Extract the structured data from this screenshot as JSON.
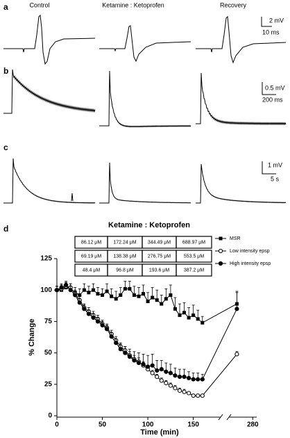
{
  "panels": {
    "a": {
      "label": "a",
      "columns": [
        "Control",
        "Ketamine : Ketoprofen",
        "Recovery"
      ],
      "scale_v": "2 mV",
      "scale_t": "10 ms"
    },
    "b": {
      "label": "b",
      "scale_v": "0.5 mV",
      "scale_t": "200 ms"
    },
    "c": {
      "label": "c",
      "scale_v": "1 mV",
      "scale_t": "5 s"
    },
    "d": {
      "label": "d"
    }
  },
  "chart_data": {
    "type": "line",
    "title": "Ketamine : Ketoprofen",
    "table": [
      [
        "86.12  μM",
        "172.24  μM",
        "344.49  μM",
        "688.97  μM"
      ],
      [
        "69.19  μM",
        "138.38  μM",
        "276.75  μM",
        "553.5  μM"
      ],
      [
        "48.4  μM",
        "96.8  μM",
        "193.6  μM",
        "387.2  μM"
      ]
    ],
    "xlabel": "Time (min)",
    "ylabel": "% Change",
    "x": [
      0,
      5,
      10,
      15,
      20,
      25,
      30,
      35,
      40,
      45,
      50,
      55,
      60,
      65,
      70,
      75,
      80,
      85,
      90,
      95,
      100,
      105,
      110,
      115,
      120,
      125,
      130,
      135,
      140,
      145,
      150,
      155,
      160,
      260
    ],
    "xlim": [
      0,
      180
    ],
    "xticks": [
      0,
      50,
      100,
      150
    ],
    "xlim2": [
      250,
      285
    ],
    "xticks2": [
      280
    ],
    "ylim": [
      0,
      125
    ],
    "yticks": [
      0,
      25,
      50,
      75,
      100,
      125
    ],
    "series": [
      {
        "name": "MSR",
        "color": "#000000",
        "marker": "square",
        "values": [
          100,
          100,
          102,
          101,
          98,
          96,
          100,
          98,
          100,
          97,
          96,
          99,
          95,
          93,
          96,
          101,
          101,
          96,
          95,
          97,
          91,
          94,
          92,
          89,
          93,
          96,
          85,
          80,
          82,
          78,
          80,
          77,
          74,
          89
        ],
        "errors": [
          3,
          4,
          4,
          4,
          4,
          5,
          5,
          5,
          5,
          5,
          5,
          6,
          6,
          6,
          6,
          6,
          6,
          7,
          7,
          7,
          7,
          8,
          8,
          7,
          8,
          8,
          9,
          9,
          8,
          8,
          8,
          7,
          5,
          9
        ]
      },
      {
        "name": "Low intensity epsp",
        "color": "#000000",
        "marker": "open-circle",
        "values": [
          100,
          101,
          103,
          102,
          97,
          92,
          86,
          83,
          80,
          77,
          73,
          70,
          65,
          60,
          55,
          52,
          48,
          45,
          43,
          40,
          37,
          34,
          31,
          28,
          26,
          24,
          22,
          20,
          19,
          18,
          16,
          16,
          16,
          49
        ],
        "errors": [
          3,
          3,
          3,
          3,
          3,
          3,
          3,
          3,
          3,
          3,
          3,
          3,
          3,
          3,
          3,
          3,
          3,
          3,
          3,
          3,
          3,
          2,
          2,
          2,
          2,
          2,
          2,
          2,
          2,
          1,
          1,
          1,
          1,
          2
        ]
      },
      {
        "name": "High intensity epsp",
        "color": "#000000",
        "marker": "filled-circle",
        "values": [
          100,
          102,
          104,
          100,
          96,
          90,
          85,
          81,
          78,
          75,
          72,
          69,
          63,
          58,
          53,
          50,
          47,
          44,
          42,
          41,
          39,
          40,
          36,
          37,
          35,
          34,
          32,
          31,
          31,
          30,
          29,
          29,
          29,
          85
        ],
        "errors": [
          3,
          3,
          3,
          3,
          3,
          3,
          3,
          3,
          3,
          3,
          3,
          3,
          3,
          3,
          4,
          5,
          6,
          7,
          8,
          8,
          9,
          9,
          8,
          7,
          7,
          7,
          6,
          6,
          6,
          5,
          5,
          5,
          4,
          14
        ]
      }
    ]
  }
}
